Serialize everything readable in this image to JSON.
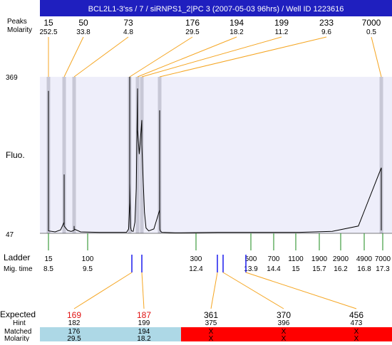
{
  "header": {
    "title": "BCL2L1-3'ss / 7 / siRNPS1_2|PC 3 (2007-05-03 96hrs) / Well ID 1223616",
    "peaks_label": "Peaks",
    "molarity_label": "Molarity"
  },
  "colors": {
    "title_bar": "#1f1fbf",
    "plot_bg": "#eeeefa",
    "band": "#c8c8d6",
    "connector": "#f5a623",
    "tick_green": "#1a8a1a",
    "blue_mark": "#1a1aee",
    "expected_red": "#e01010",
    "matched_blue": "#add8e6",
    "unmatched_red": "#ff0000"
  },
  "chart_data": {
    "type": "line",
    "ylabel": "Fluo.",
    "ylim": [
      47,
      369
    ],
    "yticks": [
      "369",
      "47"
    ],
    "peaks": [
      {
        "size": "15",
        "molarity": "252.5",
        "ladder_pos": 15
      },
      {
        "size": "50",
        "molarity": "33.8",
        "ladder_pos": 50
      },
      {
        "size": "73",
        "molarity": "4.8",
        "ladder_pos": 73
      },
      {
        "size": "176",
        "molarity": "29.5",
        "ladder_pos": 176
      },
      {
        "size": "194",
        "molarity": "18.2",
        "ladder_pos": 194
      },
      {
        "size": "199",
        "molarity": "11.2",
        "ladder_pos": 199
      },
      {
        "size": "233",
        "molarity": "9.6",
        "ladder_pos": 233
      },
      {
        "size": "7000",
        "molarity": "0.5",
        "ladder_pos": 7000
      }
    ],
    "ladder": {
      "label": "Ladder",
      "time_label": "Mig. time",
      "sizes": [
        "15",
        "100",
        "300",
        "500",
        "700",
        "1100",
        "1900",
        "2900",
        "4900",
        "7000"
      ],
      "size_values": [
        15,
        100,
        300,
        500,
        700,
        1100,
        1900,
        2900,
        4900,
        7000
      ],
      "times": [
        "8.5",
        "9.5",
        "12.4",
        "13.9",
        "14.4",
        "15",
        "15.7",
        "16.2",
        "16.8",
        "17.3"
      ],
      "time_values": [
        8.5,
        9.5,
        12.4,
        13.9,
        14.4,
        15,
        15.7,
        16.2,
        16.8,
        17.3
      ]
    },
    "trace": [
      [
        15,
        52
      ],
      [
        15,
        62
      ],
      [
        15,
        100
      ],
      [
        15,
        180
      ],
      [
        15,
        280
      ],
      [
        15,
        340
      ],
      [
        15,
        300
      ],
      [
        15,
        180
      ],
      [
        15,
        90
      ],
      [
        15,
        60
      ],
      [
        15,
        52
      ],
      [
        30,
        50
      ],
      [
        42,
        54
      ],
      [
        50,
        70
      ],
      [
        50,
        128
      ],
      [
        50,
        168
      ],
      [
        50,
        140
      ],
      [
        50,
        90
      ],
      [
        50,
        62
      ],
      [
        58,
        53
      ],
      [
        66,
        51
      ],
      [
        73,
        53
      ],
      [
        73,
        62
      ],
      [
        73,
        56
      ],
      [
        85,
        50
      ],
      [
        120,
        49
      ],
      [
        150,
        49
      ],
      [
        170,
        49
      ],
      [
        174,
        56
      ],
      [
        176,
        110
      ],
      [
        176,
        250
      ],
      [
        176,
        369
      ],
      [
        176,
        330
      ],
      [
        176,
        150
      ],
      [
        178,
        60
      ],
      [
        180,
        52
      ],
      [
        184,
        51
      ],
      [
        188,
        70
      ],
      [
        191,
        140
      ],
      [
        194,
        345
      ],
      [
        194,
        260
      ],
      [
        196,
        210
      ],
      [
        199,
        280
      ],
      [
        199,
        230
      ],
      [
        201,
        170
      ],
      [
        204,
        90
      ],
      [
        207,
        58
      ],
      [
        212,
        52
      ],
      [
        222,
        56
      ],
      [
        233,
        95
      ],
      [
        233,
        300
      ],
      [
        233,
        200
      ],
      [
        235,
        80
      ],
      [
        240,
        56
      ],
      [
        250,
        52
      ],
      [
        300,
        49
      ],
      [
        700,
        48
      ],
      [
        2000,
        49
      ],
      [
        4500,
        49
      ],
      [
        5500,
        51
      ],
      [
        6300,
        62
      ],
      [
        7000,
        182
      ],
      [
        7000,
        150
      ],
      [
        7000,
        90
      ],
      [
        7400,
        60
      ],
      [
        7800,
        53
      ]
    ],
    "expected": {
      "label": "Expected",
      "hint_label": "Hint",
      "matched_label": "Matched",
      "molarity_label": "Molarity",
      "rows": [
        {
          "expected": "169",
          "hint": "182",
          "matched": "176",
          "molarity": "29.5",
          "status": "matched",
          "ladder_pos": 176
        },
        {
          "expected": "187",
          "hint": "199",
          "matched": "194",
          "molarity": "18.2",
          "status": "matched",
          "ladder_pos": 194
        },
        {
          "expected": "361",
          "hint": "375",
          "matched": "X",
          "molarity": "X",
          "status": "unmatched",
          "ladder_pos": 356
        },
        {
          "expected": "370",
          "hint": "396",
          "matched": "X",
          "molarity": "X",
          "status": "unmatched",
          "ladder_pos": 376
        },
        {
          "expected": "456",
          "hint": "473",
          "matched": "X",
          "molarity": "X",
          "status": "unmatched",
          "ladder_pos": 456
        }
      ]
    }
  }
}
